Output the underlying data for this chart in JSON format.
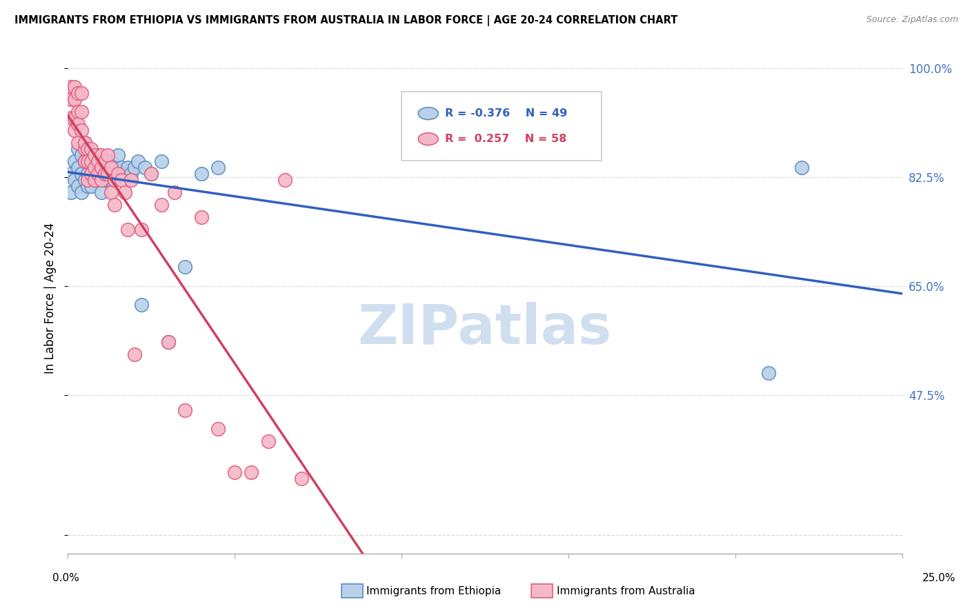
{
  "title": "IMMIGRANTS FROM ETHIOPIA VS IMMIGRANTS FROM AUSTRALIA IN LABOR FORCE | AGE 20-24 CORRELATION CHART",
  "source": "Source: ZipAtlas.com",
  "ylabel": "In Labor Force | Age 20-24",
  "yticks": [
    0.25,
    0.475,
    0.65,
    0.825,
    1.0
  ],
  "ytick_labels": [
    "",
    "47.5%",
    "65.0%",
    "82.5%",
    "100.0%"
  ],
  "xlim": [
    0.0,
    0.25
  ],
  "ylim": [
    0.22,
    1.04
  ],
  "legend_ethiopia_r": "-0.376",
  "legend_ethiopia_n": "49",
  "legend_australia_r": "0.257",
  "legend_australia_n": "58",
  "color_ethiopia_fill": "#b8d0e8",
  "color_ethiopia_edge": "#5b8ec4",
  "color_australia_fill": "#f5b8c8",
  "color_australia_edge": "#e06080",
  "color_trendline_ethiopia": "#3060c0",
  "color_trendline_australia": "#d04060",
  "color_ytick": "#4472c4",
  "watermark_color": "#d0dff0",
  "grid_color": "#d8d8d8",
  "ethiopia_x": [
    0.001,
    0.001,
    0.002,
    0.002,
    0.003,
    0.003,
    0.003,
    0.004,
    0.004,
    0.004,
    0.005,
    0.005,
    0.005,
    0.006,
    0.006,
    0.006,
    0.007,
    0.007,
    0.007,
    0.008,
    0.008,
    0.009,
    0.009,
    0.01,
    0.01,
    0.01,
    0.011,
    0.011,
    0.012,
    0.013,
    0.013,
    0.014,
    0.015,
    0.016,
    0.017,
    0.018,
    0.019,
    0.02,
    0.021,
    0.022,
    0.023,
    0.025,
    0.028,
    0.03,
    0.035,
    0.04,
    0.045,
    0.21,
    0.22
  ],
  "ethiopia_y": [
    0.83,
    0.8,
    0.85,
    0.82,
    0.87,
    0.84,
    0.81,
    0.86,
    0.83,
    0.8,
    0.88,
    0.85,
    0.82,
    0.86,
    0.83,
    0.81,
    0.85,
    0.83,
    0.81,
    0.85,
    0.83,
    0.86,
    0.83,
    0.85,
    0.83,
    0.8,
    0.85,
    0.82,
    0.84,
    0.85,
    0.82,
    0.84,
    0.86,
    0.84,
    0.83,
    0.84,
    0.83,
    0.84,
    0.85,
    0.62,
    0.84,
    0.83,
    0.85,
    0.56,
    0.68,
    0.83,
    0.84,
    0.51,
    0.84
  ],
  "australia_x": [
    0.001,
    0.001,
    0.001,
    0.002,
    0.002,
    0.002,
    0.002,
    0.003,
    0.003,
    0.003,
    0.003,
    0.004,
    0.004,
    0.004,
    0.005,
    0.005,
    0.005,
    0.006,
    0.006,
    0.006,
    0.007,
    0.007,
    0.007,
    0.008,
    0.008,
    0.008,
    0.009,
    0.009,
    0.01,
    0.01,
    0.01,
    0.011,
    0.011,
    0.012,
    0.012,
    0.013,
    0.013,
    0.014,
    0.014,
    0.015,
    0.016,
    0.017,
    0.018,
    0.019,
    0.02,
    0.022,
    0.025,
    0.028,
    0.03,
    0.032,
    0.035,
    0.04,
    0.045,
    0.05,
    0.055,
    0.06,
    0.065,
    0.07
  ],
  "australia_y": [
    0.97,
    0.95,
    0.92,
    0.97,
    0.95,
    0.92,
    0.9,
    0.96,
    0.93,
    0.91,
    0.88,
    0.96,
    0.93,
    0.9,
    0.87,
    0.85,
    0.88,
    0.87,
    0.85,
    0.82,
    0.87,
    0.85,
    0.83,
    0.86,
    0.84,
    0.82,
    0.85,
    0.83,
    0.86,
    0.84,
    0.82,
    0.85,
    0.83,
    0.86,
    0.83,
    0.84,
    0.8,
    0.82,
    0.78,
    0.83,
    0.82,
    0.8,
    0.74,
    0.82,
    0.54,
    0.74,
    0.83,
    0.78,
    0.56,
    0.8,
    0.45,
    0.76,
    0.42,
    0.35,
    0.35,
    0.4,
    0.82,
    0.34
  ]
}
